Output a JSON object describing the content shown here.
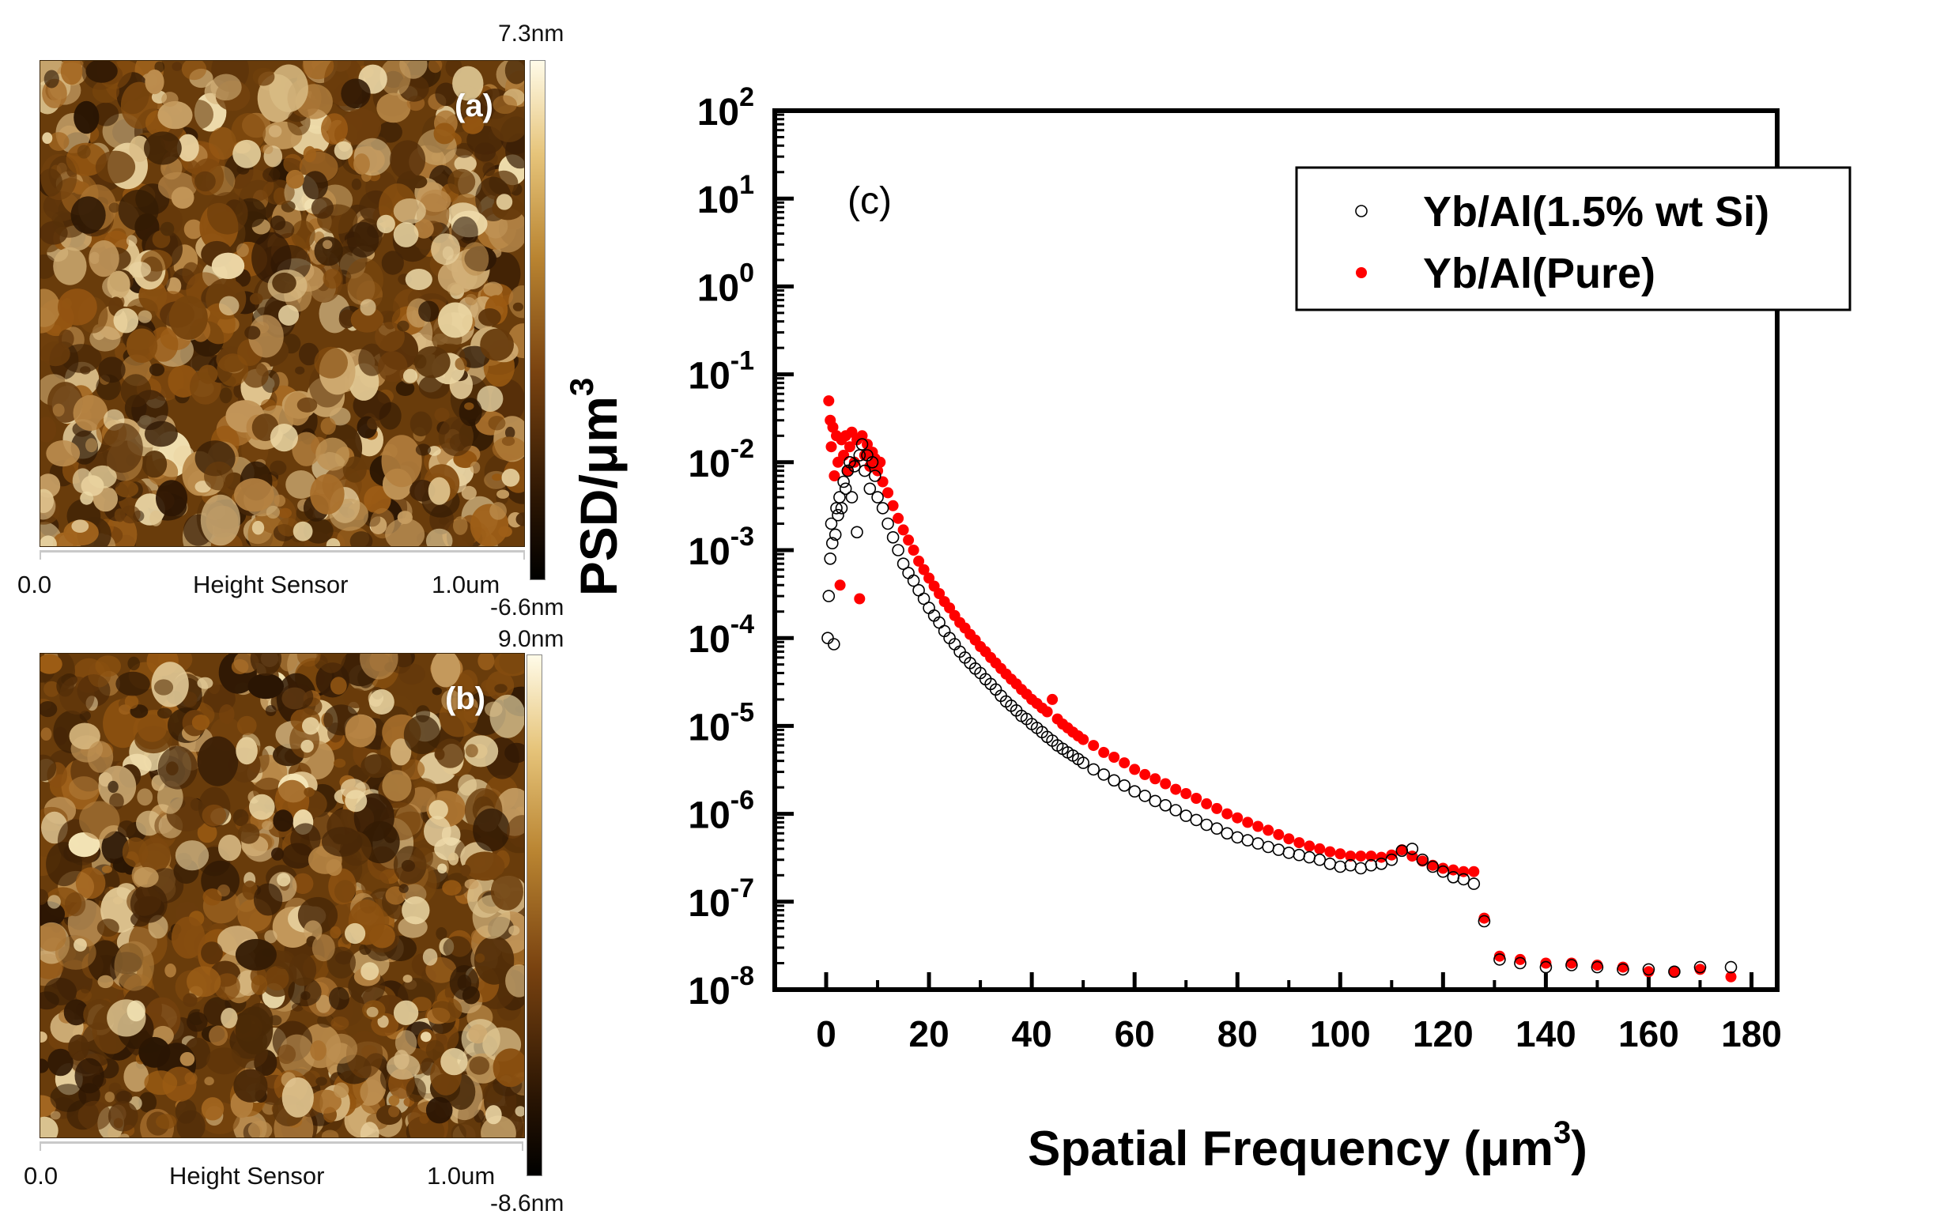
{
  "panels": [
    {
      "id": "a",
      "label": "(a)",
      "colorbar_max": "7.3nm",
      "colorbar_min": "-6.6nm",
      "axis_start": "0.0",
      "axis_title": "Height Sensor",
      "axis_end": "1.0um"
    },
    {
      "id": "b",
      "label": "(b)",
      "colorbar_max": "9.0nm",
      "colorbar_min": "-8.6nm",
      "axis_start": "0.0",
      "axis_title": "Height Sensor",
      "axis_end": "1.0um"
    }
  ],
  "colors": {
    "afm_dark": "#2a1503",
    "afm_mid": "#9b5a12",
    "afm_light": "#f6e7b8",
    "series_si": "#000000",
    "series_pure": "#ff0000"
  },
  "chart_data": {
    "type": "scatter",
    "panel_label": "(c)",
    "xlabel": "Spatial Frequency (μm",
    "xlabel_sup": "3",
    "xlabel_close": ")",
    "ylabel": "PSD/μm",
    "ylabel_sup": "3",
    "yscale": "log",
    "xlim": [
      -10,
      185
    ],
    "ylim_exp": [
      -8,
      2
    ],
    "x_ticks": [
      0,
      20,
      40,
      60,
      80,
      100,
      120,
      140,
      160,
      180
    ],
    "y_tick_exponents": [
      -8,
      -7,
      -6,
      -5,
      -4,
      -3,
      -2,
      -1,
      0,
      1,
      2
    ],
    "y_tick_base": "10",
    "legend_position": "top-right",
    "series": [
      {
        "name": "Yb/Al(1.5% wt Si)",
        "marker": "open-circle",
        "color": "#000000",
        "x": [
          0.3,
          0.5,
          0.8,
          1.0,
          1.2,
          1.5,
          1.8,
          2.0,
          2.3,
          2.6,
          3.0,
          3.4,
          3.8,
          4.2,
          4.6,
          5.0,
          5.5,
          6.0,
          6.5,
          7.0,
          7.5,
          8.0,
          8.5,
          9.0,
          9.5,
          10,
          11,
          12,
          13,
          14,
          15,
          16,
          17,
          18,
          19,
          20,
          21,
          22,
          23,
          24,
          25,
          26,
          27,
          28,
          29,
          30,
          31,
          32,
          33,
          34,
          35,
          36,
          37,
          38,
          39,
          40,
          41,
          42,
          43,
          44,
          45,
          46,
          47,
          48,
          49,
          50,
          52,
          54,
          56,
          58,
          60,
          62,
          64,
          66,
          68,
          70,
          72,
          74,
          76,
          78,
          80,
          82,
          84,
          86,
          88,
          90,
          92,
          94,
          96,
          98,
          100,
          102,
          104,
          106,
          108,
          110,
          112,
          114,
          116,
          118,
          120,
          122,
          124,
          126,
          128,
          131,
          135,
          140,
          145,
          150,
          155,
          160,
          165,
          170,
          176
        ],
        "y": [
          0.0001,
          0.0003,
          0.0008,
          0.002,
          0.0012,
          8.5e-05,
          0.0015,
          0.003,
          0.0025,
          0.004,
          0.003,
          0.006,
          0.005,
          0.008,
          0.01,
          0.004,
          0.009,
          0.0016,
          0.012,
          0.016,
          0.008,
          0.012,
          0.005,
          0.01,
          0.007,
          0.004,
          0.003,
          0.002,
          0.0014,
          0.001,
          0.0007,
          0.00055,
          0.00045,
          0.00035,
          0.00028,
          0.00022,
          0.00018,
          0.00015,
          0.00012,
          0.0001,
          8.5e-05,
          7e-05,
          6e-05,
          5.2e-05,
          4.5e-05,
          4e-05,
          3.4e-05,
          3e-05,
          2.6e-05,
          2.2e-05,
          1.9e-05,
          1.7e-05,
          1.5e-05,
          1.3e-05,
          1.2e-05,
          1.05e-05,
          9.5e-06,
          8.5e-06,
          7.5e-06,
          6.8e-06,
          6e-06,
          5.5e-06,
          5e-06,
          4.6e-06,
          4.2e-06,
          3.8e-06,
          3.2e-06,
          2.8e-06,
          2.4e-06,
          2.1e-06,
          1.8e-06,
          1.6e-06,
          1.4e-06,
          1.25e-06,
          1.1e-06,
          9.5e-07,
          8.5e-07,
          7.5e-07,
          6.8e-07,
          6e-07,
          5.4e-07,
          5e-07,
          4.6e-07,
          4.2e-07,
          3.9e-07,
          3.6e-07,
          3.4e-07,
          3.2e-07,
          3e-07,
          2.7e-07,
          2.5e-07,
          2.6e-07,
          2.4e-07,
          2.6e-07,
          2.7e-07,
          3e-07,
          3.8e-07,
          4e-07,
          3e-07,
          2.5e-07,
          2.2e-07,
          1.9e-07,
          1.8e-07,
          1.6e-07,
          6e-08,
          2.2e-08,
          2e-08,
          1.8e-08,
          1.9e-08,
          1.8e-08,
          1.7e-08,
          1.7e-08,
          1.6e-08,
          1.8e-08,
          1.8e-08
        ]
      },
      {
        "name": "Yb/Al(Pure)",
        "marker": "filled-circle",
        "color": "#ff0000",
        "x": [
          0.5,
          0.8,
          1.0,
          1.3,
          1.6,
          2.0,
          2.3,
          2.7,
          3.0,
          3.4,
          3.8,
          4.2,
          4.6,
          5.0,
          5.5,
          6.0,
          6.5,
          7.0,
          7.5,
          8.0,
          8.5,
          9.0,
          9.5,
          10,
          10.5,
          11,
          12,
          13,
          14,
          15,
          16,
          17,
          18,
          19,
          20,
          21,
          22,
          23,
          24,
          25,
          26,
          27,
          28,
          29,
          30,
          31,
          32,
          33,
          34,
          35,
          36,
          37,
          38,
          39,
          40,
          41,
          42,
          43,
          44,
          45,
          46,
          47,
          48,
          49,
          50,
          52,
          54,
          56,
          58,
          60,
          62,
          64,
          66,
          68,
          70,
          72,
          74,
          76,
          78,
          80,
          82,
          84,
          86,
          88,
          90,
          92,
          94,
          96,
          98,
          100,
          102,
          104,
          106,
          108,
          110,
          112,
          114,
          116,
          118,
          120,
          122,
          124,
          126,
          128,
          131,
          135,
          140,
          145,
          150,
          155,
          160,
          165,
          170,
          176
        ],
        "y": [
          0.05,
          0.03,
          0.015,
          0.025,
          0.007,
          0.02,
          0.01,
          0.0004,
          0.018,
          0.012,
          0.02,
          0.008,
          0.015,
          0.022,
          0.01,
          0.018,
          0.00028,
          0.02,
          0.012,
          0.016,
          0.009,
          0.013,
          0.011,
          0.008,
          0.01,
          0.006,
          0.0045,
          0.0032,
          0.0023,
          0.0017,
          0.0013,
          0.001,
          0.00075,
          0.0006,
          0.00048,
          0.00039,
          0.00032,
          0.00026,
          0.00022,
          0.00018,
          0.00015,
          0.00013,
          0.00011,
          9.5e-05,
          8e-05,
          7e-05,
          6e-05,
          5.2e-05,
          4.5e-05,
          3.9e-05,
          3.4e-05,
          3e-05,
          2.6e-05,
          2.3e-05,
          2e-05,
          1.8e-05,
          1.6e-05,
          1.45e-05,
          2e-05,
          1.2e-05,
          1.05e-05,
          9.5e-06,
          8.5e-06,
          7.7e-06,
          7e-06,
          6e-06,
          5e-06,
          4.4e-06,
          3.8e-06,
          3.2e-06,
          2.8e-06,
          2.5e-06,
          2.2e-06,
          1.9e-06,
          1.7e-06,
          1.5e-06,
          1.3e-06,
          1.15e-06,
          1e-06,
          9e-07,
          8e-07,
          7.2e-07,
          6.5e-07,
          5.8e-07,
          5.2e-07,
          4.7e-07,
          4.3e-07,
          4e-07,
          3.7e-07,
          3.5e-07,
          3.3e-07,
          3.3e-07,
          3.3e-07,
          3.2e-07,
          3.4e-07,
          3.9e-07,
          3.3e-07,
          2.9e-07,
          2.6e-07,
          2.4e-07,
          2.3e-07,
          2.2e-07,
          2.2e-07,
          6.5e-08,
          2.4e-08,
          2.2e-08,
          2e-08,
          2e-08,
          1.9e-08,
          1.8e-08,
          1.6e-08,
          1.6e-08,
          1.7e-08,
          1.4e-08
        ]
      }
    ]
  }
}
